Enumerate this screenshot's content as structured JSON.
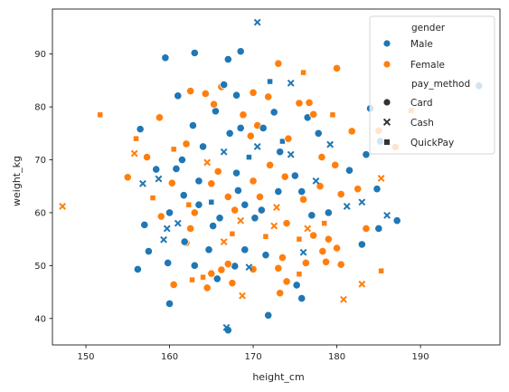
{
  "chart_data": {
    "type": "scatter",
    "xlabel": "height_cm",
    "ylabel": "weight_kg",
    "xlim": [
      146,
      199.5
    ],
    "ylim": [
      35,
      98.5
    ],
    "xticks": [
      150,
      160,
      170,
      180,
      190
    ],
    "yticks": [
      40,
      50,
      60,
      70,
      80,
      90
    ],
    "grid": false,
    "legend_placement": "top-right",
    "hue": {
      "title": "gender",
      "levels": [
        {
          "name": "Male",
          "color": "#1f77b4"
        },
        {
          "name": "Female",
          "color": "#ff7f0e"
        }
      ]
    },
    "style": {
      "title": "pay_method",
      "levels": [
        {
          "name": "Card",
          "marker": "circle"
        },
        {
          "name": "Cash",
          "marker": "x"
        },
        {
          "name": "QuickPay",
          "marker": "square"
        }
      ]
    },
    "points": [
      {
        "x": 159.5,
        "y": 89.3,
        "g": "Male",
        "m": "Card"
      },
      {
        "x": 163.0,
        "y": 90.2,
        "g": "Male",
        "m": "Card"
      },
      {
        "x": 167.0,
        "y": 89.0,
        "g": "Male",
        "m": "Card"
      },
      {
        "x": 168.5,
        "y": 90.5,
        "g": "Male",
        "m": "Card"
      },
      {
        "x": 170.5,
        "y": 96.0,
        "g": "Male",
        "m": "Cash"
      },
      {
        "x": 173.0,
        "y": 88.2,
        "g": "Female",
        "m": "Card"
      },
      {
        "x": 176.0,
        "y": 86.5,
        "g": "Female",
        "m": "QuickPay"
      },
      {
        "x": 180.0,
        "y": 87.3,
        "g": "Female",
        "m": "Card"
      },
      {
        "x": 197.0,
        "y": 84.0,
        "g": "Male",
        "m": "Card"
      },
      {
        "x": 151.7,
        "y": 78.5,
        "g": "Female",
        "m": "QuickPay"
      },
      {
        "x": 147.2,
        "y": 61.2,
        "g": "Female",
        "m": "Cash"
      },
      {
        "x": 155.0,
        "y": 66.7,
        "g": "Female",
        "m": "Card"
      },
      {
        "x": 156.5,
        "y": 75.8,
        "g": "Male",
        "m": "Card"
      },
      {
        "x": 156.0,
        "y": 74.0,
        "g": "Female",
        "m": "QuickPay"
      },
      {
        "x": 156.2,
        "y": 49.3,
        "g": "Male",
        "m": "Card"
      },
      {
        "x": 157.0,
        "y": 57.7,
        "g": "Male",
        "m": "Card"
      },
      {
        "x": 157.5,
        "y": 52.7,
        "g": "Male",
        "m": "Card"
      },
      {
        "x": 159.0,
        "y": 59.3,
        "g": "Female",
        "m": "Card"
      },
      {
        "x": 159.8,
        "y": 50.5,
        "g": "Male",
        "m": "Card"
      },
      {
        "x": 160.0,
        "y": 42.8,
        "g": "Male",
        "m": "Card"
      },
      {
        "x": 161.0,
        "y": 82.1,
        "g": "Male",
        "m": "Card"
      },
      {
        "x": 162.5,
        "y": 83.0,
        "g": "Female",
        "m": "Card"
      },
      {
        "x": 161.5,
        "y": 70.0,
        "g": "Male",
        "m": "Card"
      },
      {
        "x": 162.0,
        "y": 54.3,
        "g": "Female",
        "m": "Card"
      },
      {
        "x": 163.0,
        "y": 50.0,
        "g": "Male",
        "m": "Card"
      },
      {
        "x": 162.7,
        "y": 47.3,
        "g": "Female",
        "m": "QuickPay"
      },
      {
        "x": 163.5,
        "y": 61.5,
        "g": "Male",
        "m": "Card"
      },
      {
        "x": 164.5,
        "y": 45.8,
        "g": "Female",
        "m": "Card"
      },
      {
        "x": 165.0,
        "y": 48.5,
        "g": "Female",
        "m": "Card"
      },
      {
        "x": 164.3,
        "y": 82.5,
        "g": "Female",
        "m": "Card"
      },
      {
        "x": 165.5,
        "y": 79.2,
        "g": "Male",
        "m": "Card"
      },
      {
        "x": 166.2,
        "y": 83.8,
        "g": "Female",
        "m": "Card"
      },
      {
        "x": 166.5,
        "y": 84.2,
        "g": "Male",
        "m": "Card"
      },
      {
        "x": 167.0,
        "y": 37.8,
        "g": "Male",
        "m": "Card"
      },
      {
        "x": 166.8,
        "y": 38.3,
        "g": "Male",
        "m": "Cash"
      },
      {
        "x": 168.0,
        "y": 82.2,
        "g": "Male",
        "m": "Card"
      },
      {
        "x": 168.5,
        "y": 76.0,
        "g": "Male",
        "m": "Card"
      },
      {
        "x": 170.0,
        "y": 82.7,
        "g": "Female",
        "m": "Card"
      },
      {
        "x": 170.5,
        "y": 76.5,
        "g": "Female",
        "m": "Card"
      },
      {
        "x": 171.8,
        "y": 81.9,
        "g": "Female",
        "m": "Card"
      },
      {
        "x": 172.0,
        "y": 84.8,
        "g": "Male",
        "m": "QuickPay"
      },
      {
        "x": 173.2,
        "y": 71.5,
        "g": "Male",
        "m": "Card"
      },
      {
        "x": 174.5,
        "y": 84.5,
        "g": "Male",
        "m": "Cash"
      },
      {
        "x": 175.5,
        "y": 80.7,
        "g": "Female",
        "m": "Card"
      },
      {
        "x": 176.5,
        "y": 78.0,
        "g": "Male",
        "m": "Card"
      },
      {
        "x": 176.7,
        "y": 80.8,
        "g": "Female",
        "m": "Card"
      },
      {
        "x": 177.2,
        "y": 78.6,
        "g": "Female",
        "m": "Card"
      },
      {
        "x": 177.8,
        "y": 75.0,
        "g": "Male",
        "m": "Card"
      },
      {
        "x": 179.2,
        "y": 72.9,
        "g": "Male",
        "m": "Cash"
      },
      {
        "x": 179.5,
        "y": 78.5,
        "g": "Female",
        "m": "QuickPay"
      },
      {
        "x": 184.0,
        "y": 79.7,
        "g": "Male",
        "m": "Card"
      },
      {
        "x": 185.2,
        "y": 73.5,
        "g": "Male",
        "m": "Card"
      },
      {
        "x": 187.0,
        "y": 72.4,
        "g": "Female",
        "m": "Card"
      },
      {
        "x": 188.9,
        "y": 79.3,
        "g": "Female",
        "m": "QuickPay"
      },
      {
        "x": 185.0,
        "y": 75.5,
        "g": "Female",
        "m": "Card"
      },
      {
        "x": 183.5,
        "y": 71.0,
        "g": "Male",
        "m": "Card"
      },
      {
        "x": 181.8,
        "y": 75.4,
        "g": "Female",
        "m": "Card"
      },
      {
        "x": 182.5,
        "y": 64.5,
        "g": "Female",
        "m": "Card"
      },
      {
        "x": 183.0,
        "y": 62.0,
        "g": "Male",
        "m": "Cash"
      },
      {
        "x": 181.2,
        "y": 61.2,
        "g": "Male",
        "m": "Cash"
      },
      {
        "x": 183.5,
        "y": 57.0,
        "g": "Female",
        "m": "Card"
      },
      {
        "x": 184.8,
        "y": 64.5,
        "g": "Male",
        "m": "Card"
      },
      {
        "x": 185.3,
        "y": 66.5,
        "g": "Female",
        "m": "Cash"
      },
      {
        "x": 186.0,
        "y": 59.5,
        "g": "Male",
        "m": "Cash"
      },
      {
        "x": 187.2,
        "y": 58.5,
        "g": "Male",
        "m": "Card"
      },
      {
        "x": 185.0,
        "y": 57.0,
        "g": "Male",
        "m": "Card"
      },
      {
        "x": 185.3,
        "y": 49.0,
        "g": "Female",
        "m": "QuickPay"
      },
      {
        "x": 183.0,
        "y": 54.0,
        "g": "Male",
        "m": "Card"
      },
      {
        "x": 183.0,
        "y": 46.5,
        "g": "Female",
        "m": "Cash"
      },
      {
        "x": 180.8,
        "y": 43.6,
        "g": "Female",
        "m": "Cash"
      },
      {
        "x": 180.5,
        "y": 50.2,
        "g": "Female",
        "m": "Card"
      },
      {
        "x": 180.0,
        "y": 53.3,
        "g": "Female",
        "m": "Card"
      },
      {
        "x": 178.3,
        "y": 52.7,
        "g": "Female",
        "m": "Card"
      },
      {
        "x": 176.3,
        "y": 50.5,
        "g": "Female",
        "m": "Card"
      },
      {
        "x": 175.5,
        "y": 48.4,
        "g": "Female",
        "m": "QuickPay"
      },
      {
        "x": 175.8,
        "y": 43.8,
        "g": "Male",
        "m": "Card"
      },
      {
        "x": 175.2,
        "y": 46.3,
        "g": "Male",
        "m": "Card"
      },
      {
        "x": 174.0,
        "y": 47.0,
        "g": "Female",
        "m": "Card"
      },
      {
        "x": 173.2,
        "y": 44.8,
        "g": "Female",
        "m": "Card"
      },
      {
        "x": 173.0,
        "y": 49.5,
        "g": "Female",
        "m": "Card"
      },
      {
        "x": 171.8,
        "y": 40.6,
        "g": "Male",
        "m": "Card"
      },
      {
        "x": 170.0,
        "y": 49.3,
        "g": "Female",
        "m": "Card"
      },
      {
        "x": 169.5,
        "y": 49.7,
        "g": "Male",
        "m": "Cash"
      },
      {
        "x": 168.7,
        "y": 44.3,
        "g": "Female",
        "m": "Cash"
      },
      {
        "x": 167.8,
        "y": 49.9,
        "g": "Male",
        "m": "Card"
      },
      {
        "x": 167.0,
        "y": 50.3,
        "g": "Female",
        "m": "Card"
      },
      {
        "x": 166.2,
        "y": 49.2,
        "g": "Female",
        "m": "Card"
      },
      {
        "x": 165.7,
        "y": 47.5,
        "g": "Male",
        "m": "Card"
      },
      {
        "x": 164.0,
        "y": 47.8,
        "g": "Female",
        "m": "QuickPay"
      },
      {
        "x": 167.5,
        "y": 46.7,
        "g": "Female",
        "m": "Card"
      },
      {
        "x": 177.2,
        "y": 55.7,
        "g": "Female",
        "m": "Card"
      },
      {
        "x": 179.0,
        "y": 55.0,
        "g": "Female",
        "m": "Card"
      },
      {
        "x": 178.7,
        "y": 50.7,
        "g": "Female",
        "m": "Card"
      },
      {
        "x": 160.5,
        "y": 46.4,
        "g": "Female",
        "m": "Card"
      },
      {
        "x": 158.4,
        "y": 68.2,
        "g": "Male",
        "m": "Card"
      },
      {
        "x": 158.7,
        "y": 66.4,
        "g": "Male",
        "m": "Cash"
      },
      {
        "x": 159.7,
        "y": 57.0,
        "g": "Male",
        "m": "Cash"
      },
      {
        "x": 159.3,
        "y": 54.9,
        "g": "Male",
        "m": "Cash"
      },
      {
        "x": 161.0,
        "y": 58.0,
        "g": "Male",
        "m": "Cash"
      },
      {
        "x": 161.8,
        "y": 54.5,
        "g": "Male",
        "m": "Card"
      },
      {
        "x": 162.3,
        "y": 61.5,
        "g": "Female",
        "m": "QuickPay"
      },
      {
        "x": 160.3,
        "y": 65.6,
        "g": "Female",
        "m": "Card"
      },
      {
        "x": 160.8,
        "y": 68.3,
        "g": "Male",
        "m": "Card"
      },
      {
        "x": 161.7,
        "y": 63.3,
        "g": "Male",
        "m": "Card"
      },
      {
        "x": 163.0,
        "y": 60.0,
        "g": "Female",
        "m": "Card"
      },
      {
        "x": 162.0,
        "y": 73.0,
        "g": "Female",
        "m": "Card"
      },
      {
        "x": 164.0,
        "y": 72.5,
        "g": "Male",
        "m": "Card"
      },
      {
        "x": 165.0,
        "y": 65.5,
        "g": "Female",
        "m": "Card"
      },
      {
        "x": 166.0,
        "y": 59.0,
        "g": "Male",
        "m": "Card"
      },
      {
        "x": 167.0,
        "y": 63.0,
        "g": "Female",
        "m": "Card"
      },
      {
        "x": 168.0,
        "y": 67.5,
        "g": "Male",
        "m": "Card"
      },
      {
        "x": 169.0,
        "y": 61.5,
        "g": "Male",
        "m": "Card"
      },
      {
        "x": 170.0,
        "y": 66.0,
        "g": "Female",
        "m": "Card"
      },
      {
        "x": 171.0,
        "y": 60.5,
        "g": "Male",
        "m": "Card"
      },
      {
        "x": 172.0,
        "y": 69.0,
        "g": "Female",
        "m": "Card"
      },
      {
        "x": 173.0,
        "y": 64.0,
        "g": "Male",
        "m": "Card"
      },
      {
        "x": 174.0,
        "y": 58.0,
        "g": "Female",
        "m": "Card"
      },
      {
        "x": 175.0,
        "y": 67.0,
        "g": "Male",
        "m": "Card"
      },
      {
        "x": 176.0,
        "y": 62.5,
        "g": "Female",
        "m": "Card"
      },
      {
        "x": 177.0,
        "y": 59.5,
        "g": "Male",
        "m": "Card"
      },
      {
        "x": 178.0,
        "y": 65.0,
        "g": "Female",
        "m": "Card"
      },
      {
        "x": 179.0,
        "y": 60.0,
        "g": "Male",
        "m": "Card"
      },
      {
        "x": 164.5,
        "y": 69.5,
        "g": "Female",
        "m": "Cash"
      },
      {
        "x": 166.5,
        "y": 71.5,
        "g": "Male",
        "m": "Cash"
      },
      {
        "x": 168.5,
        "y": 58.5,
        "g": "Female",
        "m": "Cash"
      },
      {
        "x": 170.5,
        "y": 72.5,
        "g": "Male",
        "m": "Cash"
      },
      {
        "x": 172.5,
        "y": 57.5,
        "g": "Female",
        "m": "Cash"
      },
      {
        "x": 174.5,
        "y": 71.0,
        "g": "Male",
        "m": "Cash"
      },
      {
        "x": 176.5,
        "y": 57.0,
        "g": "Female",
        "m": "Cash"
      },
      {
        "x": 165.0,
        "y": 62.0,
        "g": "Male",
        "m": "QuickPay"
      },
      {
        "x": 167.5,
        "y": 56.0,
        "g": "Female",
        "m": "QuickPay"
      },
      {
        "x": 169.5,
        "y": 70.5,
        "g": "Male",
        "m": "QuickPay"
      },
      {
        "x": 171.5,
        "y": 55.5,
        "g": "Female",
        "m": "QuickPay"
      },
      {
        "x": 173.5,
        "y": 73.5,
        "g": "Male",
        "m": "QuickPay"
      },
      {
        "x": 175.5,
        "y": 55.0,
        "g": "Female",
        "m": "QuickPay"
      },
      {
        "x": 163.5,
        "y": 66.0,
        "g": "Male",
        "m": "Card"
      },
      {
        "x": 165.8,
        "y": 67.8,
        "g": "Female",
        "m": "Card"
      },
      {
        "x": 168.2,
        "y": 64.2,
        "g": "Male",
        "m": "Card"
      },
      {
        "x": 170.8,
        "y": 63.0,
        "g": "Female",
        "m": "Card"
      },
      {
        "x": 173.8,
        "y": 66.8,
        "g": "Female",
        "m": "Card"
      },
      {
        "x": 169.7,
        "y": 74.5,
        "g": "Female",
        "m": "Card"
      },
      {
        "x": 167.2,
        "y": 75.0,
        "g": "Male",
        "m": "Card"
      },
      {
        "x": 171.2,
        "y": 76.0,
        "g": "Male",
        "m": "Card"
      },
      {
        "x": 174.2,
        "y": 74.0,
        "g": "Female",
        "m": "Card"
      },
      {
        "x": 162.8,
        "y": 76.5,
        "g": "Male",
        "m": "Card"
      },
      {
        "x": 158.8,
        "y": 78.0,
        "g": "Female",
        "m": "Card"
      },
      {
        "x": 160.5,
        "y": 72.0,
        "g": "Female",
        "m": "QuickPay"
      },
      {
        "x": 157.3,
        "y": 70.5,
        "g": "Female",
        "m": "Card"
      },
      {
        "x": 155.8,
        "y": 71.2,
        "g": "Female",
        "m": "Cash"
      },
      {
        "x": 156.8,
        "y": 65.5,
        "g": "Male",
        "m": "Cash"
      },
      {
        "x": 158.0,
        "y": 62.8,
        "g": "Female",
        "m": "QuickPay"
      },
      {
        "x": 164.7,
        "y": 53.0,
        "g": "Male",
        "m": "Card"
      },
      {
        "x": 166.5,
        "y": 54.5,
        "g": "Female",
        "m": "Cash"
      },
      {
        "x": 169.0,
        "y": 53.0,
        "g": "Male",
        "m": "Card"
      },
      {
        "x": 171.5,
        "y": 52.0,
        "g": "Male",
        "m": "Card"
      },
      {
        "x": 173.5,
        "y": 51.5,
        "g": "Female",
        "m": "Card"
      },
      {
        "x": 176.0,
        "y": 52.5,
        "g": "Male",
        "m": "Cash"
      },
      {
        "x": 178.5,
        "y": 58.0,
        "g": "Female",
        "m": "QuickPay"
      },
      {
        "x": 180.5,
        "y": 63.5,
        "g": "Female",
        "m": "Card"
      },
      {
        "x": 181.5,
        "y": 68.0,
        "g": "Male",
        "m": "Card"
      },
      {
        "x": 179.8,
        "y": 69.0,
        "g": "Female",
        "m": "Card"
      },
      {
        "x": 178.2,
        "y": 70.5,
        "g": "Female",
        "m": "Card"
      },
      {
        "x": 177.5,
        "y": 66.0,
        "g": "Male",
        "m": "Cash"
      },
      {
        "x": 175.8,
        "y": 64.0,
        "g": "Male",
        "m": "Card"
      },
      {
        "x": 172.8,
        "y": 61.0,
        "g": "Female",
        "m": "Cash"
      },
      {
        "x": 170.2,
        "y": 59.0,
        "g": "Male",
        "m": "Card"
      },
      {
        "x": 167.8,
        "y": 60.5,
        "g": "Female",
        "m": "Card"
      },
      {
        "x": 165.2,
        "y": 57.5,
        "g": "Male",
        "m": "Card"
      },
      {
        "x": 162.5,
        "y": 57.0,
        "g": "Female",
        "m": "Card"
      },
      {
        "x": 160.0,
        "y": 60.0,
        "g": "Male",
        "m": "Card"
      },
      {
        "x": 168.8,
        "y": 78.5,
        "g": "Female",
        "m": "Card"
      },
      {
        "x": 172.5,
        "y": 79.0,
        "g": "Male",
        "m": "Card"
      },
      {
        "x": 165.3,
        "y": 80.5,
        "g": "Female",
        "m": "Card"
      }
    ]
  }
}
